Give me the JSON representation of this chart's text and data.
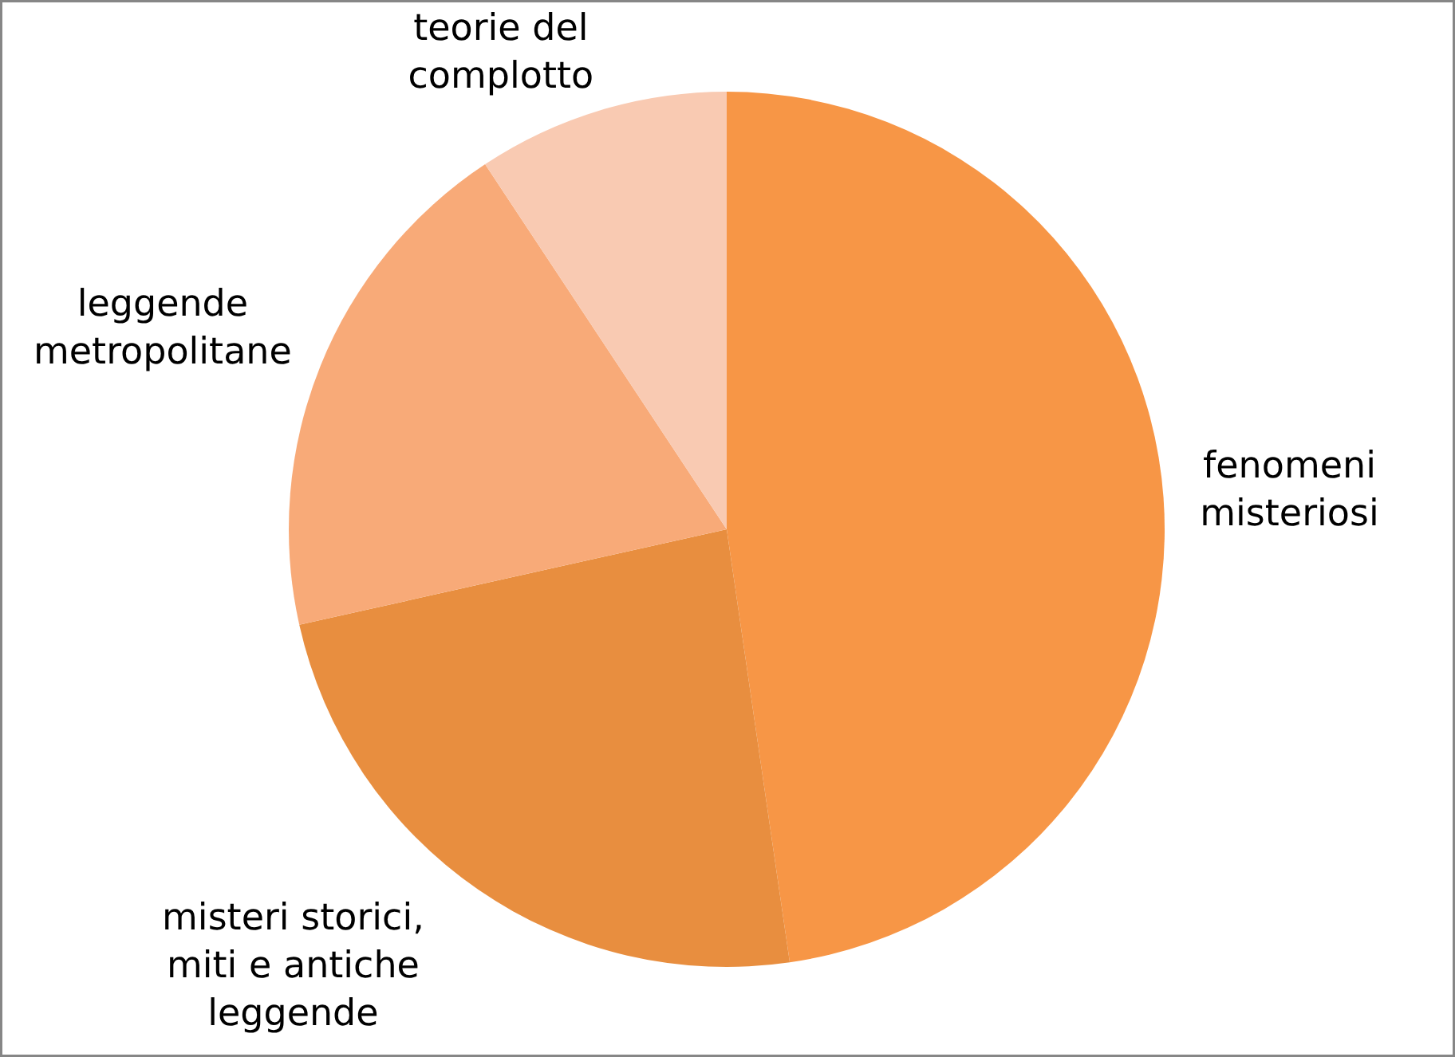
{
  "chart_data": {
    "type": "pie",
    "categories": [
      "fenomeni misteriosi",
      "misteri storici, miti e antiche leggende",
      "leggende metropolitane",
      "teorie del complotto"
    ],
    "values": [
      47.7,
      23.8,
      19.2,
      9.3
    ],
    "colors": [
      "#f79646",
      "#e88e3f",
      "#f8aa78",
      "#f9cab2"
    ]
  }
}
